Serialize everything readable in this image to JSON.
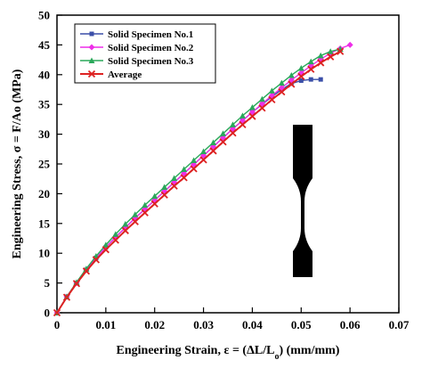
{
  "chart_data": {
    "type": "line",
    "xlabel": "Engineering Strain, ε = (ΔL/L",
    "xlabel_sub": "o",
    "xlabel_units": ") (mm/mm)",
    "ylabel": "Engineering Stress, σ = F/Ao (MPa)",
    "xlim": [
      0,
      0.07
    ],
    "ylim": [
      0,
      50
    ],
    "x_ticks": [
      "0",
      "0.01",
      "0.02",
      "0.03",
      "0.04",
      "0.05",
      "0.06",
      "0.07"
    ],
    "y_ticks": [
      "0",
      "5",
      "10",
      "15",
      "20",
      "25",
      "30",
      "35",
      "40",
      "45",
      "50"
    ],
    "grid": false,
    "legend_position": "top-left",
    "inset": "dog-bone tensile specimen silhouette",
    "series": [
      {
        "name": "Solid Specimen No.1",
        "color": "#3b4fa8",
        "marker": "square",
        "x": [
          0,
          0.002,
          0.004,
          0.006,
          0.008,
          0.01,
          0.012,
          0.014,
          0.016,
          0.018,
          0.02,
          0.022,
          0.024,
          0.026,
          0.028,
          0.03,
          0.032,
          0.034,
          0.036,
          0.038,
          0.04,
          0.042,
          0.044,
          0.046,
          0.048,
          0.05,
          0.052,
          0.054
        ],
        "y": [
          0,
          2.7,
          5,
          7.2,
          9.2,
          11,
          12.7,
          14.3,
          15.9,
          17.4,
          18.9,
          20.4,
          21.9,
          23.4,
          24.9,
          26.4,
          27.9,
          29.4,
          30.9,
          32.3,
          33.7,
          35.0,
          36.3,
          37.5,
          38.5,
          39.0,
          39.2,
          39.2
        ]
      },
      {
        "name": "Solid Specimen No.2",
        "color": "#ee2ee8",
        "marker": "diamond",
        "x": [
          0,
          0.002,
          0.004,
          0.006,
          0.008,
          0.01,
          0.012,
          0.014,
          0.016,
          0.018,
          0.02,
          0.022,
          0.024,
          0.026,
          0.028,
          0.03,
          0.032,
          0.034,
          0.036,
          0.038,
          0.04,
          0.042,
          0.044,
          0.046,
          0.048,
          0.05,
          0.052,
          0.054,
          0.056,
          0.058,
          0.06
        ],
        "y": [
          0,
          2.7,
          5,
          7.2,
          9.2,
          11,
          12.7,
          14.3,
          15.9,
          17.4,
          18.9,
          20.4,
          21.9,
          23.4,
          24.9,
          26.4,
          27.9,
          29.4,
          30.9,
          32.3,
          33.7,
          35.1,
          36.5,
          37.8,
          39.1,
          40.3,
          41.5,
          42.6,
          43.6,
          44.4,
          45.0
        ]
      },
      {
        "name": "Solid Specimen No.3",
        "color": "#2aa85a",
        "marker": "triangle",
        "x": [
          0,
          0.002,
          0.004,
          0.006,
          0.008,
          0.01,
          0.012,
          0.014,
          0.016,
          0.018,
          0.02,
          0.022,
          0.024,
          0.026,
          0.028,
          0.03,
          0.032,
          0.034,
          0.036,
          0.038,
          0.04,
          0.042,
          0.044,
          0.046,
          0.048,
          0.05,
          0.052,
          0.054,
          0.056,
          0.058
        ],
        "y": [
          0,
          2.7,
          5.1,
          7.4,
          9.5,
          11.4,
          13.2,
          14.9,
          16.5,
          18.1,
          19.6,
          21.1,
          22.6,
          24.1,
          25.6,
          27.1,
          28.6,
          30.1,
          31.6,
          33.1,
          34.5,
          35.9,
          37.3,
          38.6,
          39.9,
          41.1,
          42.2,
          43.2,
          43.9,
          44.3
        ]
      },
      {
        "name": "Average",
        "color": "#dd2222",
        "marker": "x",
        "x": [
          0,
          0.002,
          0.004,
          0.006,
          0.008,
          0.01,
          0.012,
          0.014,
          0.016,
          0.018,
          0.02,
          0.022,
          0.024,
          0.026,
          0.028,
          0.03,
          0.032,
          0.034,
          0.036,
          0.038,
          0.04,
          0.042,
          0.044,
          0.046,
          0.048,
          0.05,
          0.052,
          0.054,
          0.056,
          0.058
        ],
        "y": [
          0,
          2.6,
          4.9,
          7.0,
          8.9,
          10.6,
          12.2,
          13.8,
          15.3,
          16.8,
          18.3,
          19.8,
          21.3,
          22.7,
          24.2,
          25.7,
          27.2,
          28.7,
          30.2,
          31.6,
          33.0,
          34.4,
          35.8,
          37.1,
          38.4,
          39.7,
          40.9,
          42.0,
          43.0,
          43.9
        ]
      }
    ]
  }
}
